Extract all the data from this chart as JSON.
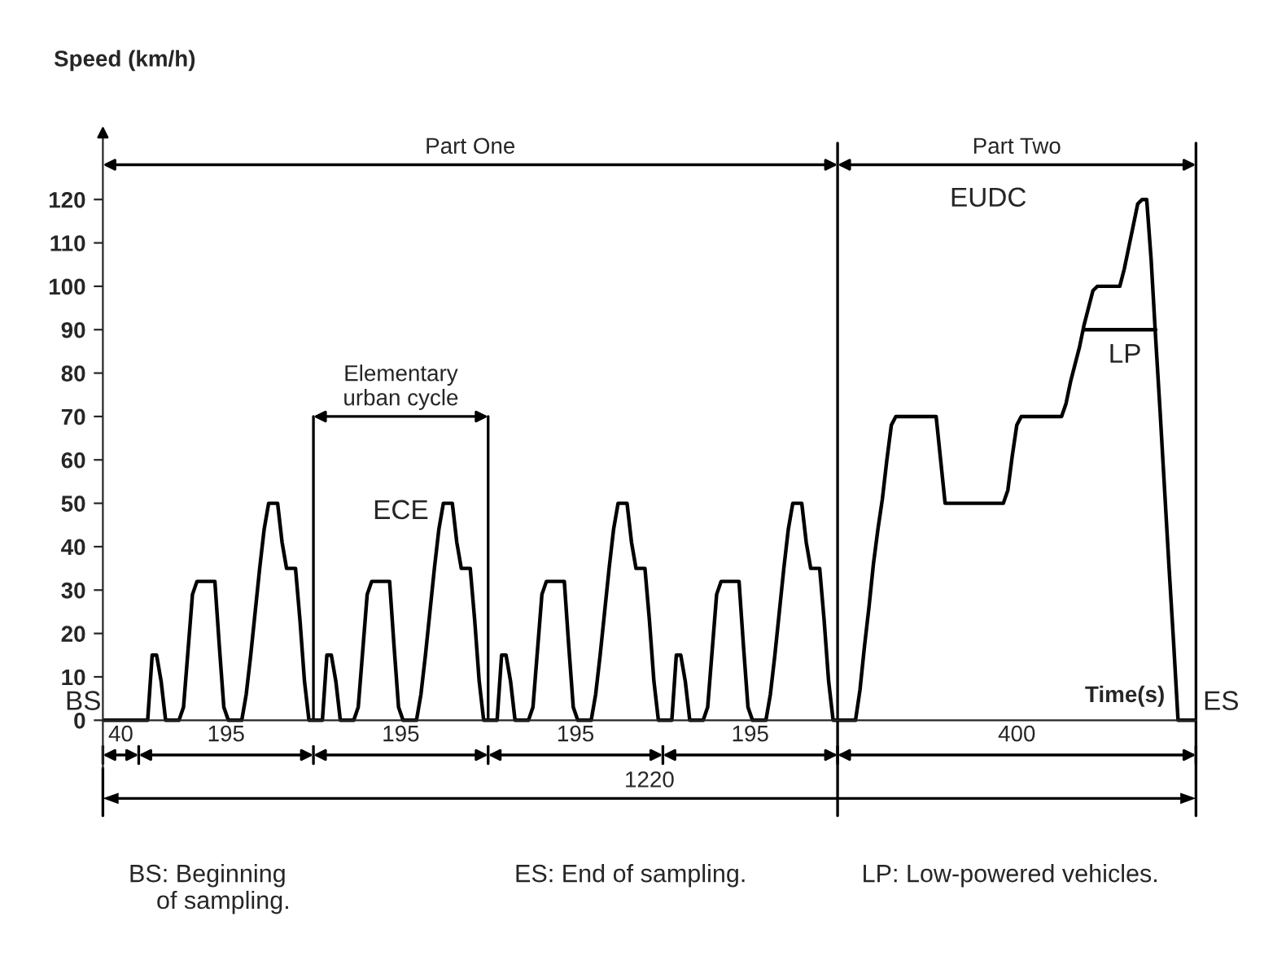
{
  "chart_data": {
    "type": "line",
    "ylabel": "Speed (km/h)",
    "xlabel": "Time(s)",
    "categories": [
      null,
      null,
      null,
      null,
      null,
      null,
      null,
      null,
      null,
      null,
      null,
      null,
      null,
      null,
      null,
      null,
      null,
      null,
      null,
      null,
      null,
      null,
      null,
      null,
      null,
      null,
      null,
      null,
      null,
      null,
      null,
      null,
      null,
      null,
      null,
      null,
      null,
      null,
      null,
      null,
      null,
      null,
      null,
      null,
      null,
      null,
      null,
      null,
      null,
      null,
      null,
      null,
      null,
      null,
      null,
      null,
      null,
      null,
      null,
      null,
      null,
      null,
      null,
      null,
      null,
      null,
      null,
      null,
      null,
      null,
      null,
      null,
      null,
      null,
      null,
      null,
      null,
      null,
      null,
      null,
      null,
      null,
      null,
      null,
      null,
      null,
      null,
      null,
      null,
      null,
      null,
      null,
      null,
      null,
      null,
      null,
      null,
      null,
      null,
      null,
      null,
      null,
      null,
      null,
      null,
      null,
      null,
      null,
      null,
      null,
      null,
      null,
      null,
      null,
      null,
      null,
      null,
      null,
      null,
      null,
      null,
      null,
      null,
      null,
      null,
      null,
      null,
      null,
      null,
      null,
      null,
      null,
      null,
      null,
      null,
      null,
      null,
      null,
      null,
      null,
      null,
      null,
      null,
      null,
      null,
      null,
      null,
      null,
      null,
      null,
      null,
      null,
      null,
      null,
      null,
      null,
      null,
      null,
      null,
      null,
      null,
      null,
      null,
      null,
      null,
      null,
      null,
      null,
      null,
      null,
      null,
      null,
      null,
      null,
      null,
      null,
      null,
      null,
      null,
      null,
      null,
      null,
      null,
      null,
      null,
      null,
      null,
      null,
      null,
      null,
      null,
      null,
      null,
      null,
      null,
      null,
      null,
      null,
      null,
      null,
      null,
      null,
      null,
      null,
      null,
      null,
      null,
      null,
      null,
      null,
      null,
      null,
      null,
      null,
      null,
      null,
      null,
      null,
      null,
      null,
      null,
      null,
      null,
      null,
      null,
      null,
      null,
      null,
      null,
      null,
      null,
      null,
      null,
      null,
      null,
      null,
      null,
      null,
      null,
      null,
      null,
      null,
      null,
      null,
      null
    ],
    "series": [
      {
        "color": "#000000",
        "values": [
          0,
          0,
          0,
          0,
          0,
          0,
          0,
          0,
          0,
          0,
          0,
          15,
          15,
          9,
          0,
          0,
          0,
          0,
          3,
          16,
          29,
          32,
          32,
          32,
          32,
          32,
          17,
          3,
          0,
          0,
          0,
          0,
          6,
          15,
          25,
          35,
          44,
          50,
          50,
          50,
          41,
          35,
          35,
          35,
          23,
          9,
          0,
          0,
          0,
          0,
          15,
          15,
          9,
          0,
          0,
          0,
          0,
          3,
          16,
          29,
          32,
          32,
          32,
          32,
          32,
          17,
          3,
          0,
          0,
          0,
          0,
          6,
          15,
          25,
          35,
          44,
          50,
          50,
          50,
          41,
          35,
          35,
          35,
          23,
          9,
          0,
          0,
          0,
          0,
          15,
          15,
          9,
          0,
          0,
          0,
          0,
          3,
          16,
          29,
          32,
          32,
          32,
          32,
          32,
          17,
          3,
          0,
          0,
          0,
          0,
          6,
          15,
          25,
          35,
          44,
          50,
          50,
          50,
          41,
          35,
          35,
          35,
          23,
          9,
          0,
          0,
          0,
          0,
          15,
          15,
          9,
          0,
          0,
          0,
          0,
          3,
          16,
          29,
          32,
          32,
          32,
          32,
          32,
          17,
          3,
          0,
          0,
          0,
          0,
          6,
          15,
          25,
          35,
          44,
          50,
          50,
          50,
          41,
          35,
          35,
          35,
          23,
          9,
          0,
          0,
          0,
          0,
          0,
          0,
          7,
          17,
          26,
          36,
          44,
          51,
          60,
          68,
          70,
          70,
          70,
          70,
          70,
          70,
          70,
          70,
          70,
          70,
          60,
          50,
          50,
          50,
          50,
          50,
          50,
          50,
          50,
          50,
          50,
          50,
          50,
          50,
          50,
          53,
          61,
          68,
          70,
          70,
          70,
          70,
          70,
          70,
          70,
          70,
          70,
          70,
          73,
          78,
          82,
          86,
          91,
          95,
          99,
          100,
          100,
          100,
          100,
          100,
          100,
          104,
          109,
          114,
          119,
          120,
          120,
          106,
          88,
          71,
          53,
          35,
          18,
          0,
          0,
          0,
          0,
          0
        ]
      },
      {
        "color": "#000000",
        "values": [
          null,
          null,
          null,
          null,
          null,
          null,
          null,
          null,
          null,
          null,
          null,
          null,
          null,
          null,
          null,
          null,
          null,
          null,
          null,
          null,
          null,
          null,
          null,
          null,
          null,
          null,
          null,
          null,
          null,
          null,
          null,
          null,
          null,
          null,
          null,
          null,
          null,
          null,
          null,
          null,
          null,
          null,
          null,
          null,
          null,
          null,
          null,
          null,
          null,
          null,
          null,
          null,
          null,
          null,
          null,
          null,
          null,
          null,
          null,
          null,
          null,
          null,
          null,
          null,
          null,
          null,
          null,
          null,
          null,
          null,
          null,
          null,
          null,
          null,
          null,
          null,
          null,
          null,
          null,
          null,
          null,
          null,
          null,
          null,
          null,
          null,
          null,
          null,
          null,
          null,
          null,
          null,
          null,
          null,
          null,
          null,
          null,
          null,
          null,
          null,
          null,
          null,
          null,
          null,
          null,
          null,
          null,
          null,
          null,
          null,
          null,
          null,
          null,
          null,
          null,
          null,
          null,
          null,
          null,
          null,
          null,
          null,
          null,
          null,
          null,
          null,
          null,
          null,
          null,
          null,
          null,
          null,
          null,
          null,
          null,
          null,
          null,
          null,
          null,
          null,
          null,
          null,
          null,
          null,
          null,
          null,
          null,
          null,
          null,
          null,
          null,
          null,
          null,
          null,
          null,
          null,
          null,
          null,
          null,
          null,
          null,
          null,
          null,
          null,
          null,
          null,
          null,
          null,
          null,
          null,
          null,
          null,
          null,
          null,
          null,
          null,
          null,
          null,
          null,
          null,
          null,
          null,
          null,
          null,
          null,
          null,
          null,
          null,
          null,
          null,
          null,
          null,
          null,
          null,
          null,
          null,
          null,
          null,
          null,
          null,
          null,
          null,
          null,
          null,
          null,
          null,
          null,
          null,
          null,
          null,
          null,
          null,
          null,
          null,
          null,
          null,
          null,
          null,
          null,
          90,
          90,
          90,
          90,
          90,
          90,
          90,
          90,
          90,
          90,
          90,
          90,
          90,
          90,
          90,
          90,
          90,
          null,
          null,
          null,
          null,
          null,
          null,
          null,
          null,
          null
        ]
      }
    ],
    "ylim": [
      -11,
      135
    ],
    "yticks": [
      0,
      10,
      20,
      30,
      40,
      50,
      60,
      70,
      80,
      90,
      100,
      110,
      120
    ],
    "tick_labels": "y",
    "legend": false,
    "annotations": [
      "Part One",
      "Part Two",
      "Elementary\nurban cycle",
      "ECE",
      "EUDC",
      "LP",
      "BS",
      "ES",
      "40",
      "195",
      "195",
      "195",
      "195",
      "400",
      "1220",
      "BS: Beginning\n    of sampling.",
      "ES: End of sampling.",
      "LP: Low-powered vehicles."
    ]
  }
}
